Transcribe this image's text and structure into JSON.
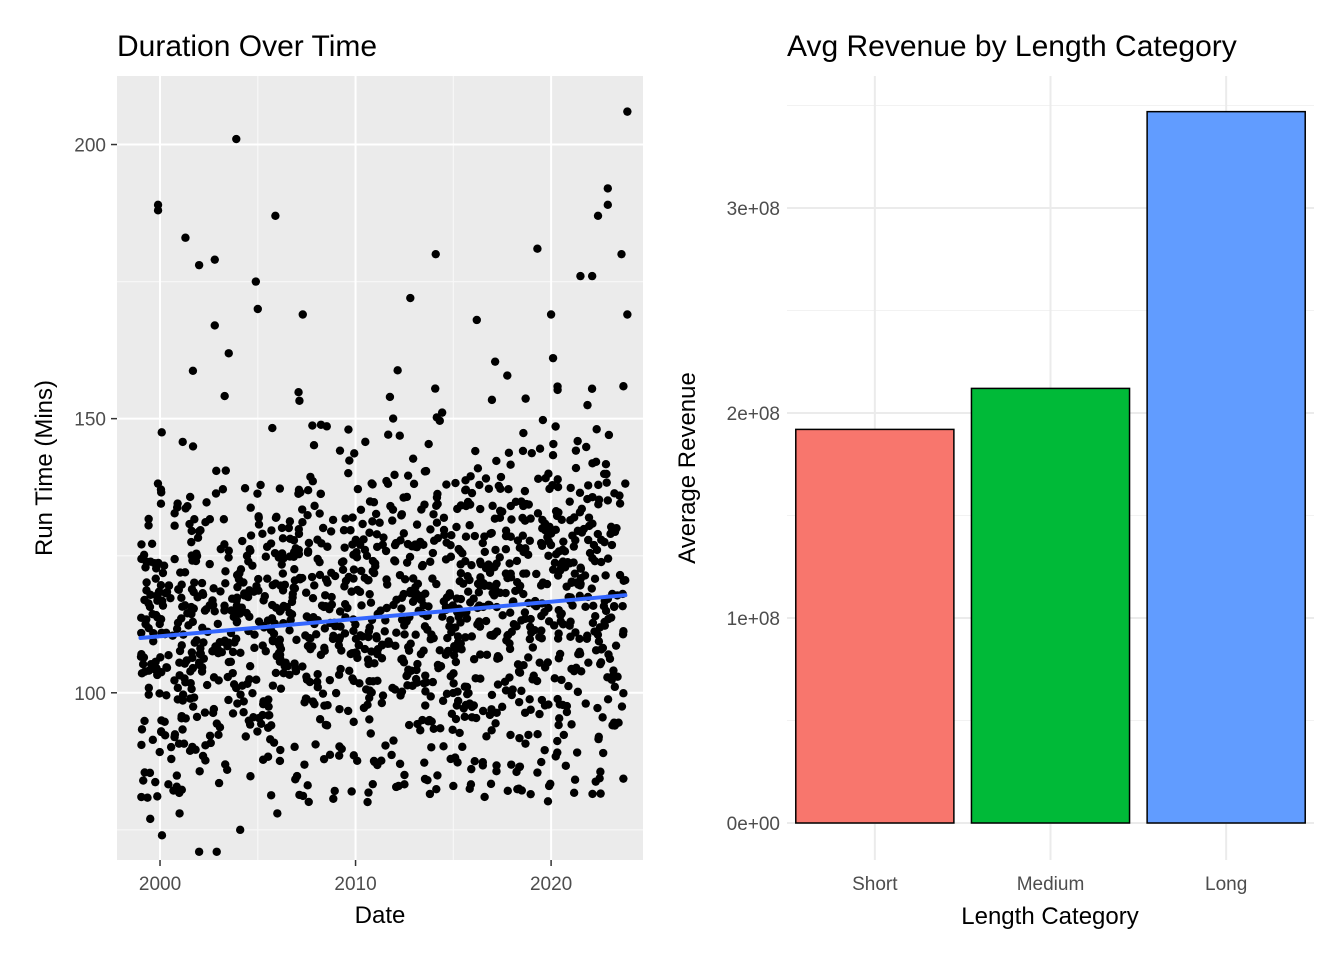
{
  "chart_data": [
    {
      "type": "scatter",
      "title": "Duration Over Time",
      "xlabel": "Date",
      "ylabel": "Run Time (Mins)",
      "xlim": [
        1997.8,
        2024.7
      ],
      "ylim": [
        69.5,
        212.5
      ],
      "x_ticks": [
        2000,
        2010,
        2020
      ],
      "x_tick_labels": [
        "2000",
        "2010",
        "2020"
      ],
      "y_ticks": [
        100,
        150,
        200
      ],
      "y_tick_labels": [
        "100",
        "150",
        "200"
      ],
      "grid": true,
      "background": "#ebebeb",
      "point_color": "#000000",
      "trend": {
        "x": [
          1999.0,
          2023.8
        ],
        "y": [
          110.0,
          117.8
        ],
        "color": "#3366ff"
      },
      "outliers": [
        {
          "x": 1999.9,
          "y": 189
        },
        {
          "x": 1999.9,
          "y": 188
        },
        {
          "x": 2001.3,
          "y": 183
        },
        {
          "x": 2002.0,
          "y": 178
        },
        {
          "x": 2002.8,
          "y": 179
        },
        {
          "x": 2003.9,
          "y": 201
        },
        {
          "x": 2004.9,
          "y": 175
        },
        {
          "x": 2005.9,
          "y": 187
        },
        {
          "x": 2005.0,
          "y": 170
        },
        {
          "x": 2002.8,
          "y": 167
        },
        {
          "x": 2007.3,
          "y": 169
        },
        {
          "x": 2012.8,
          "y": 172
        },
        {
          "x": 2014.1,
          "y": 180
        },
        {
          "x": 2016.2,
          "y": 168
        },
        {
          "x": 2019.3,
          "y": 181
        },
        {
          "x": 2020.0,
          "y": 169
        },
        {
          "x": 2021.5,
          "y": 176
        },
        {
          "x": 2022.1,
          "y": 176
        },
        {
          "x": 2022.4,
          "y": 187
        },
        {
          "x": 2022.9,
          "y": 192
        },
        {
          "x": 2022.9,
          "y": 189
        },
        {
          "x": 2023.6,
          "y": 180
        },
        {
          "x": 2023.9,
          "y": 206
        },
        {
          "x": 2023.9,
          "y": 169
        },
        {
          "x": 2000.1,
          "y": 74
        },
        {
          "x": 1999.5,
          "y": 77
        },
        {
          "x": 2002.0,
          "y": 71
        },
        {
          "x": 2002.9,
          "y": 71
        },
        {
          "x": 2004.1,
          "y": 75
        },
        {
          "x": 2006.0,
          "y": 78
        },
        {
          "x": 2001.0,
          "y": 78
        },
        {
          "x": 2016.6,
          "y": 81
        },
        {
          "x": 2019.9,
          "y": 83
        },
        {
          "x": 2009.8,
          "y": 82
        },
        {
          "x": 2012.2,
          "y": 83
        },
        {
          "x": 2015.0,
          "y": 83
        }
      ],
      "bulk_trend_start": 110.0,
      "bulk_trend_end": 117.8,
      "bulk_spread": 16,
      "bulk_count": 1400
    },
    {
      "type": "bar",
      "title": "Avg Revenue by Length Category",
      "xlabel": "Length Category",
      "ylabel": "Average Revenue",
      "categories": [
        "Short",
        "Medium",
        "Long"
      ],
      "values": [
        192000000,
        212000000,
        347000000
      ],
      "colors": [
        "#f8766d",
        "#00ba38",
        "#619cff"
      ],
      "ylim": [
        0,
        352000000
      ],
      "y_ticks": [
        0,
        100000000,
        200000000,
        300000000
      ],
      "y_tick_labels": [
        "0e+00",
        "1e+08",
        "2e+08",
        "3e+08"
      ],
      "grid": true,
      "background": "#ffffff"
    }
  ]
}
